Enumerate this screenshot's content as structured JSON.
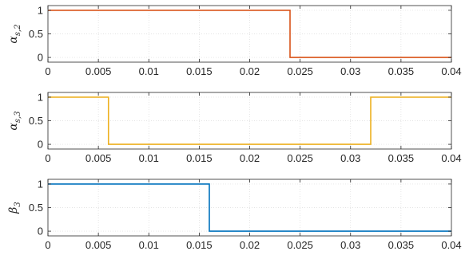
{
  "chart_data": [
    {
      "type": "line",
      "ylabel": "α_{s,2}",
      "ylabel_main": "α",
      "ylabel_sub": "s,2",
      "xlim": [
        0,
        0.04
      ],
      "ylim": [
        -0.1,
        1.1
      ],
      "xticks": [
        0,
        0.005,
        0.01,
        0.015,
        0.02,
        0.025,
        0.03,
        0.035,
        0.04
      ],
      "xticklabels": [
        "0",
        "0.005",
        "0.01",
        "0.015",
        "0.02",
        "0.025",
        "0.03",
        "0.035",
        "0.04"
      ],
      "yticks": [
        0,
        0.5,
        1
      ],
      "yticklabels": [
        "0",
        "0.5",
        "1"
      ],
      "grid": true,
      "color": "#D95319",
      "series": [
        {
          "x": [
            0,
            0.024,
            0.024,
            0.04
          ],
          "y": [
            1,
            1,
            0,
            0
          ]
        }
      ]
    },
    {
      "type": "line",
      "ylabel": "α_{s,3}",
      "ylabel_main": "α",
      "ylabel_sub": "s,3",
      "xlim": [
        0,
        0.04
      ],
      "ylim": [
        -0.1,
        1.1
      ],
      "xticks": [
        0,
        0.005,
        0.01,
        0.015,
        0.02,
        0.025,
        0.03,
        0.035,
        0.04
      ],
      "xticklabels": [
        "0",
        "0.005",
        "0.01",
        "0.015",
        "0.02",
        "0.025",
        "0.03",
        "0.035",
        "0.04"
      ],
      "yticks": [
        0,
        0.5,
        1
      ],
      "yticklabels": [
        "0",
        "0.5",
        "1"
      ],
      "grid": true,
      "color": "#EDB120",
      "series": [
        {
          "x": [
            0,
            0.006,
            0.006,
            0.032,
            0.032,
            0.04
          ],
          "y": [
            1,
            1,
            0,
            0,
            1,
            1
          ]
        }
      ]
    },
    {
      "type": "line",
      "ylabel": "β_3",
      "ylabel_main": "β",
      "ylabel_sub": "3",
      "xlim": [
        0,
        0.04
      ],
      "ylim": [
        -0.1,
        1.1
      ],
      "xticks": [
        0,
        0.005,
        0.01,
        0.015,
        0.02,
        0.025,
        0.03,
        0.035,
        0.04
      ],
      "xticklabels": [
        "0",
        "0.005",
        "0.01",
        "0.015",
        "0.02",
        "0.025",
        "0.03",
        "0.035",
        "0.04"
      ],
      "yticks": [
        0,
        0.5,
        1
      ],
      "yticklabels": [
        "0",
        "0.5",
        "1"
      ],
      "grid": true,
      "color": "#0072BD",
      "series": [
        {
          "x": [
            0,
            0.016,
            0.016,
            0.04
          ],
          "y": [
            1,
            1,
            0,
            0
          ]
        }
      ]
    }
  ]
}
